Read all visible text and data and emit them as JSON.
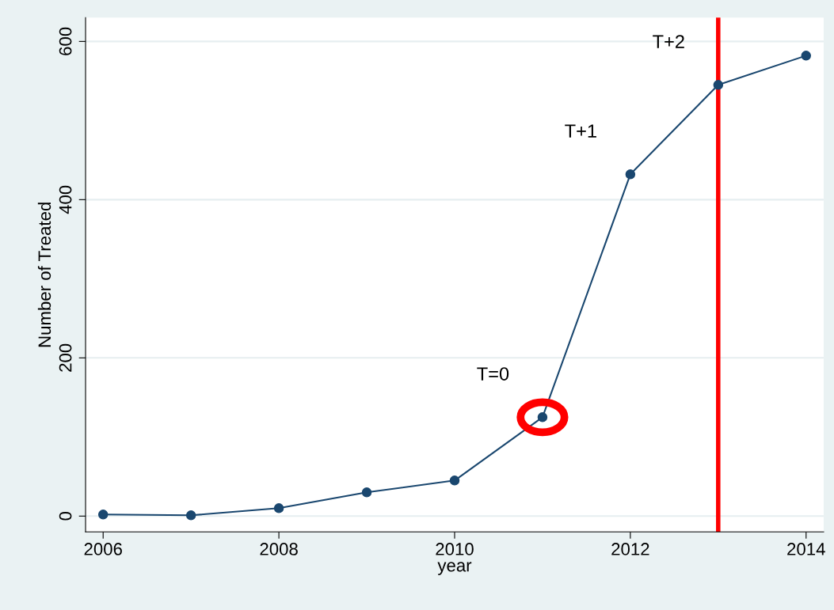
{
  "chart_data": {
    "type": "line",
    "xlabel": "year",
    "ylabel": "Number of Treated",
    "x": [
      2006,
      2007,
      2008,
      2009,
      2010,
      2011,
      2012,
      2013,
      2014
    ],
    "series": [
      {
        "color": "#1a476f",
        "values": [
          2,
          1,
          10,
          30,
          45,
          125,
          432,
          545,
          582
        ]
      }
    ],
    "marker": "circle",
    "line_style": "solid",
    "xlim": [
      2005.8,
      2014.2
    ],
    "xticks": [
      2006,
      2008,
      2010,
      2012,
      2014
    ],
    "ylim": [
      -20,
      630
    ],
    "yticks": [
      0,
      200,
      400,
      600
    ],
    "grid": "y",
    "ref_lines": [
      {
        "axis": "x",
        "value": 2013,
        "color": "#ff0000",
        "line_style": "solid"
      }
    ],
    "annotations": [
      {
        "text": "T=0",
        "x": 2011,
        "y": 125
      },
      {
        "text": "T+1",
        "x": 2012,
        "y": 432
      },
      {
        "text": "T+2",
        "x": 2013,
        "y": 545
      }
    ]
  }
}
